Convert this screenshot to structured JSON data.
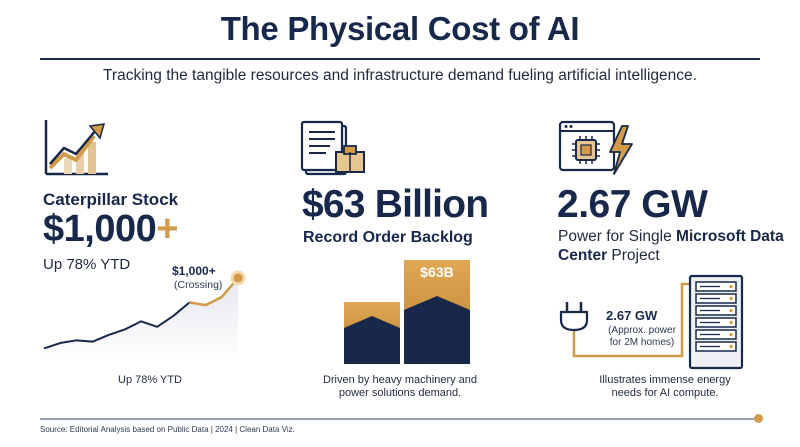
{
  "header": {
    "title": "The Physical Cost of AI",
    "subtitle": "Tracking the tangible resources and infrastructure demand fueling artificial intelligence."
  },
  "caterpillar": {
    "icon": "trend-chart-icon",
    "label": "Caterpillar Stock",
    "value": "$1,000",
    "value_suffix": "+",
    "sub": "Up 78% YTD",
    "callout": "$1,000+",
    "callout_sub": "(Crossing)",
    "caption": "Up 78% YTD",
    "trend_values": [
      10,
      14,
      16,
      15,
      20,
      24,
      30,
      26,
      34,
      44,
      42,
      48,
      62
    ]
  },
  "backlog": {
    "icon": "invoice-box-icon",
    "value": "$63 Billion",
    "label": "Record Order Backlog",
    "bar_label": "$63B",
    "caption_line1": "Driven by heavy machinery and",
    "caption_line2": "power solutions demand."
  },
  "datacenter": {
    "icon": "chip-lightning-icon",
    "value": "2.67 GW",
    "label_prefix": "Power for Single ",
    "label_bold": "Microsoft Data Center",
    "label_suffix": " Project",
    "callout": "2.67 GW",
    "callout_sub": "(Approx. power for 2M homes)",
    "caption_line1": "Illustrates immense energy",
    "caption_line2": "needs for AI compute."
  },
  "footer": {
    "source": "Source: Editorial Analysis based on Public Data | 2024 | Clean Data Viz."
  },
  "colors": {
    "navy": "#17284a",
    "gold": "#d29a49"
  }
}
